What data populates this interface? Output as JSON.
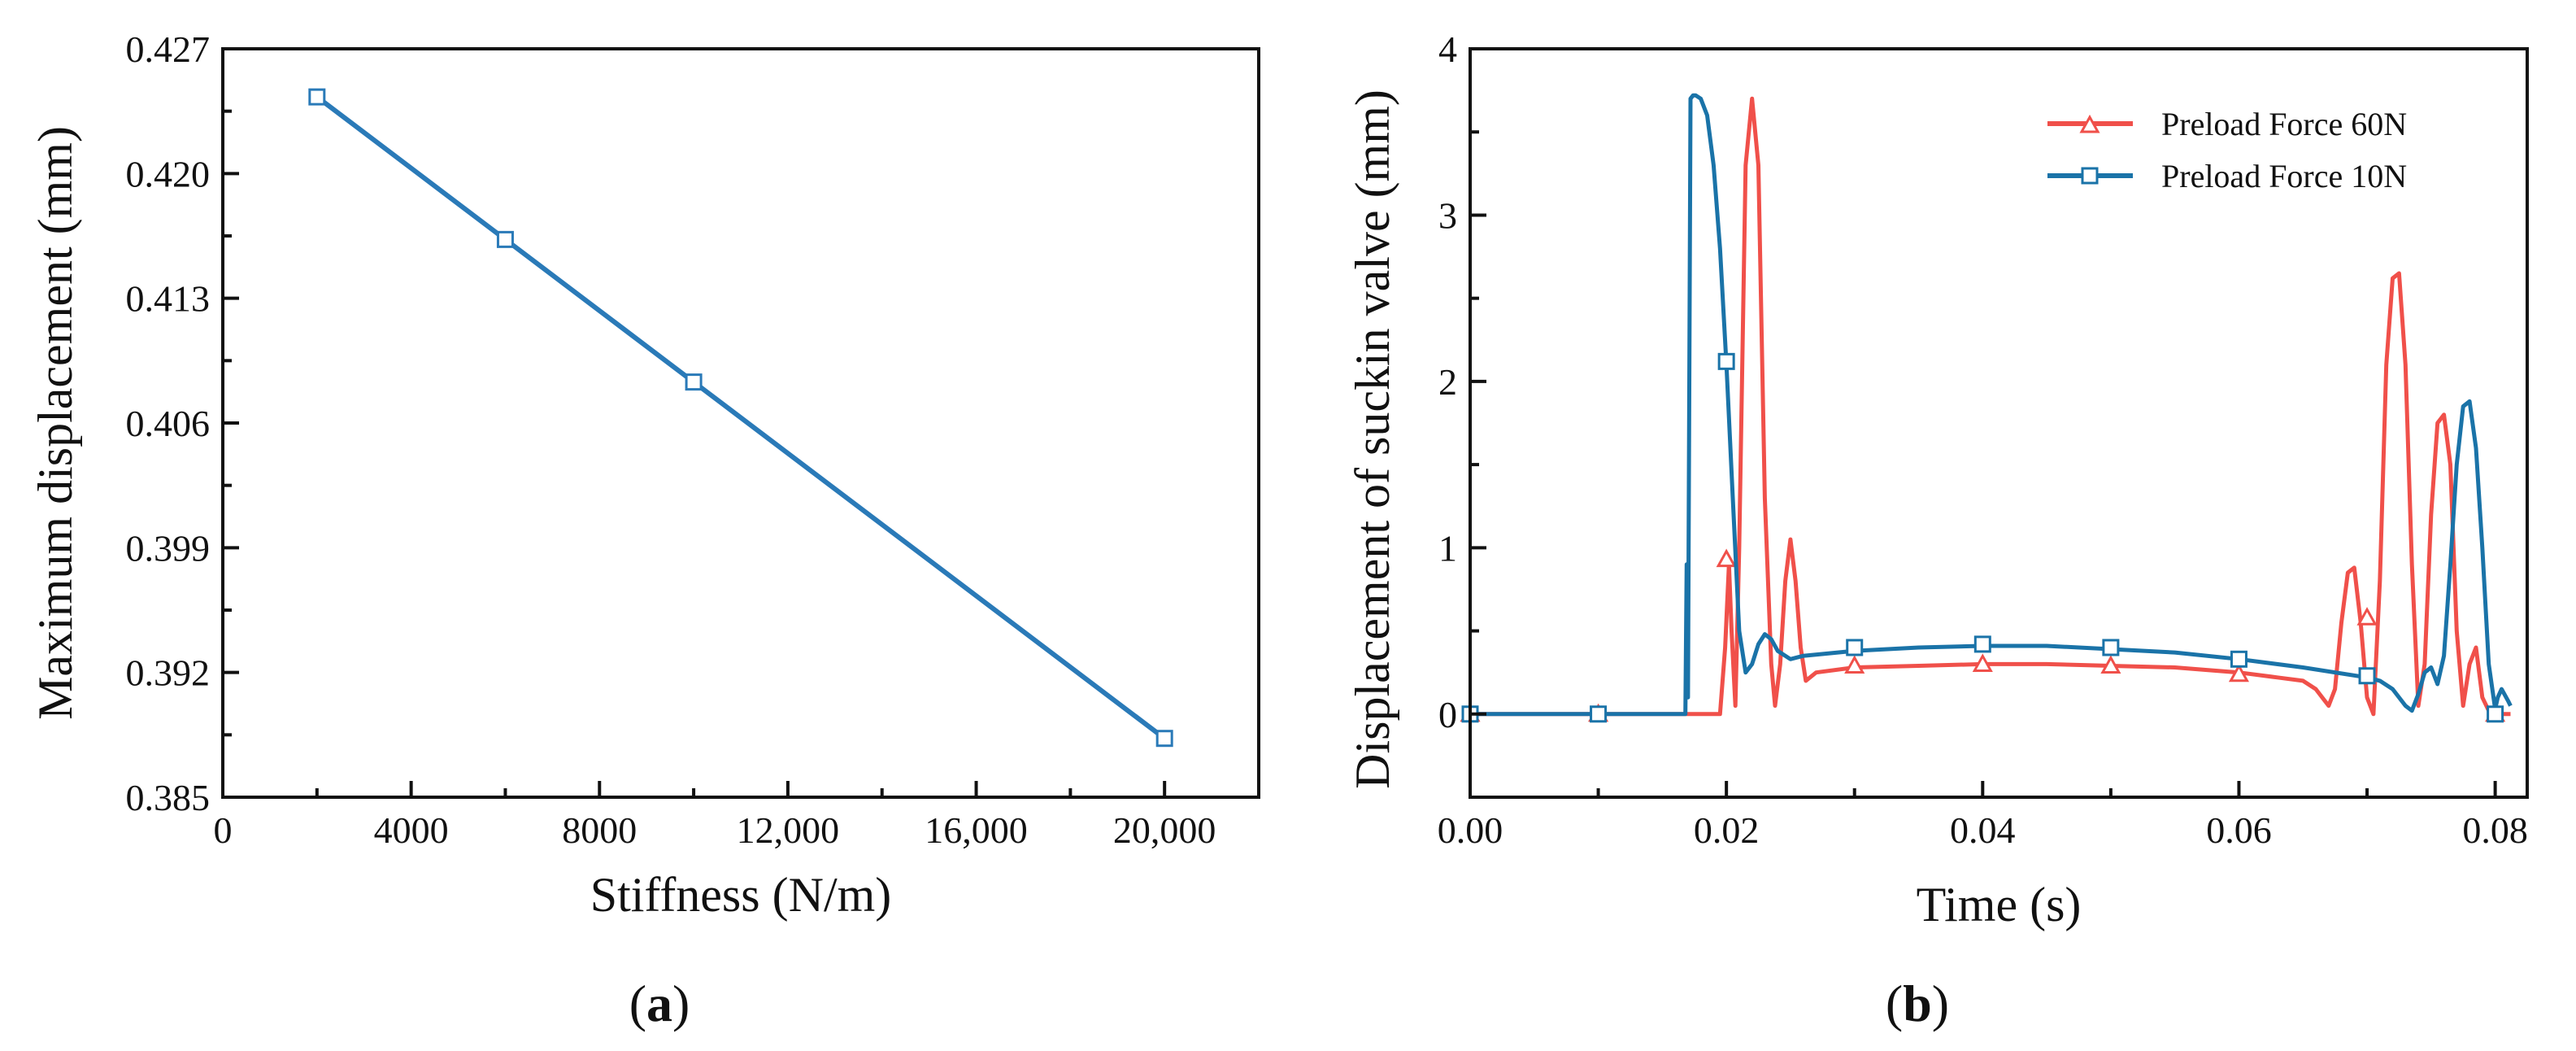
{
  "chart_data": [
    {
      "panel": "a",
      "caption": {
        "open": "(",
        "letter": "a",
        "close": ")"
      },
      "type": "line",
      "title": "",
      "xlabel": "Stiffness (N/m)",
      "ylabel": "Maximum displacement (mm)",
      "xlim": [
        0,
        22000
      ],
      "ylim": [
        0.385,
        0.427
      ],
      "x_ticks": [
        0,
        4000,
        8000,
        12000,
        16000,
        20000
      ],
      "x_tick_labels": [
        "0",
        "4000",
        "8000",
        "12,000",
        "16,000",
        "20,000"
      ],
      "y_ticks": [
        0.385,
        0.392,
        0.399,
        0.406,
        0.413,
        0.42,
        0.427
      ],
      "y_tick_labels": [
        "0.385",
        "0.392",
        "0.399",
        "0.406",
        "0.413",
        "0.420",
        "0.427"
      ],
      "grid": false,
      "series": [
        {
          "name": "Maximum displacement",
          "color": "#2a7ab8",
          "marker": "square",
          "x": [
            2000,
            6000,
            10000,
            20000
          ],
          "y": [
            0.4243,
            0.4163,
            0.4083,
            0.3883
          ]
        }
      ]
    },
    {
      "panel": "b",
      "caption": {
        "open": "(",
        "letter": "b",
        "close": ")"
      },
      "type": "line",
      "title": "",
      "xlabel": "Time (s)",
      "ylabel": "Displacement of suckin valve (mm)",
      "xlim": [
        0,
        0.0825
      ],
      "ylim": [
        -0.5,
        4
      ],
      "x_ticks": [
        0,
        0.02,
        0.04,
        0.06,
        0.08
      ],
      "x_tick_labels": [
        "0.00",
        "0.02",
        "0.04",
        "0.06",
        "0.08"
      ],
      "y_ticks": [
        0,
        1,
        2,
        3,
        4
      ],
      "y_tick_labels": [
        "0",
        "1",
        "2",
        "3",
        "4"
      ],
      "grid": false,
      "legend_position": "top-right",
      "series": [
        {
          "name": "Preload Force 60N",
          "color": "#f0504a",
          "marker": "triangle",
          "x": [
            0,
            0.01,
            0.0168,
            0.017,
            0.018,
            0.0195,
            0.0199,
            0.0202,
            0.0204,
            0.0207,
            0.021,
            0.0215,
            0.022,
            0.0225,
            0.023,
            0.0235,
            0.0238,
            0.0242,
            0.0246,
            0.025,
            0.0254,
            0.0258,
            0.0262,
            0.027,
            0.03,
            0.035,
            0.04,
            0.045,
            0.05,
            0.055,
            0.06,
            0.063,
            0.065,
            0.066,
            0.067,
            0.0675,
            0.068,
            0.0685,
            0.069,
            0.0695,
            0.07,
            0.0705,
            0.071,
            0.0715,
            0.072,
            0.0725,
            0.073,
            0.0735,
            0.074,
            0.0745,
            0.075,
            0.0755,
            0.076,
            0.0765,
            0.077,
            0.0775,
            0.078,
            0.0785,
            0.079,
            0.0795,
            0.08,
            0.0812
          ],
          "y": [
            0,
            0,
            0,
            0,
            0,
            0,
            0.4,
            0.9,
            0.5,
            0.05,
            1.0,
            3.3,
            3.7,
            3.3,
            1.3,
            0.3,
            0.05,
            0.3,
            0.8,
            1.05,
            0.8,
            0.4,
            0.2,
            0.25,
            0.28,
            0.29,
            0.3,
            0.3,
            0.29,
            0.28,
            0.25,
            0.22,
            0.2,
            0.15,
            0.05,
            0.15,
            0.55,
            0.85,
            0.88,
            0.55,
            0.1,
            0.0,
            0.8,
            2.1,
            2.62,
            2.65,
            2.1,
            0.9,
            0.05,
            0.3,
            1.2,
            1.75,
            1.8,
            1.5,
            0.5,
            0.05,
            0.3,
            0.4,
            0.1,
            0.02,
            0.0,
            0.0
          ],
          "marker_x": [
            0,
            0.01,
            0.02,
            0.03,
            0.04,
            0.05,
            0.06,
            0.07,
            0.08
          ],
          "marker_y": [
            0,
            0,
            0.93,
            0.29,
            0.3,
            0.29,
            0.24,
            0.58,
            0
          ]
        },
        {
          "name": "Preload Force 10N",
          "color": "#1a73a8",
          "marker": "square",
          "x": [
            0,
            0.01,
            0.0168,
            0.0169,
            0.017,
            0.0172,
            0.0174,
            0.0176,
            0.018,
            0.0185,
            0.019,
            0.0195,
            0.02,
            0.0205,
            0.021,
            0.0215,
            0.022,
            0.0225,
            0.023,
            0.0235,
            0.024,
            0.025,
            0.026,
            0.03,
            0.035,
            0.04,
            0.045,
            0.05,
            0.055,
            0.06,
            0.065,
            0.07,
            0.071,
            0.072,
            0.073,
            0.0735,
            0.074,
            0.0745,
            0.075,
            0.0755,
            0.076,
            0.0765,
            0.077,
            0.0775,
            0.078,
            0.0785,
            0.079,
            0.0795,
            0.08,
            0.0802,
            0.0805,
            0.081,
            0.0812
          ],
          "y": [
            0,
            0,
            0,
            0.9,
            0.1,
            3.7,
            3.72,
            3.72,
            3.7,
            3.6,
            3.3,
            2.8,
            2.1,
            1.3,
            0.5,
            0.25,
            0.3,
            0.42,
            0.48,
            0.45,
            0.38,
            0.33,
            0.35,
            0.38,
            0.4,
            0.41,
            0.41,
            0.39,
            0.37,
            0.33,
            0.28,
            0.22,
            0.2,
            0.15,
            0.05,
            0.02,
            0.12,
            0.25,
            0.28,
            0.18,
            0.35,
            0.9,
            1.5,
            1.85,
            1.88,
            1.6,
            1.0,
            0.3,
            0.03,
            0.1,
            0.15,
            0.08,
            0.05
          ],
          "marker_x": [
            0,
            0.01,
            0.02,
            0.03,
            0.04,
            0.05,
            0.06,
            0.07,
            0.08
          ],
          "marker_y": [
            0,
            0,
            2.12,
            0.4,
            0.42,
            0.4,
            0.33,
            0.23,
            0
          ]
        }
      ]
    }
  ]
}
